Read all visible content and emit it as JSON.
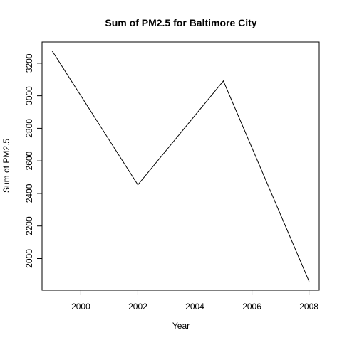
{
  "chart_data": {
    "type": "line",
    "title": "Sum of PM2.5 for Baltimore City",
    "xlabel": "Year",
    "ylabel": "Sum of PM2.5",
    "x": [
      1999,
      2002,
      2005,
      2008
    ],
    "series": [
      {
        "values": [
          3274,
          2453,
          3091,
          1862
        ]
      }
    ],
    "xlim": [
      1998.64,
      2008.36
    ],
    "ylim": [
      1805.5,
      3330.5
    ],
    "xticks": [
      2000,
      2002,
      2004,
      2006,
      2008
    ],
    "xtick_labels": [
      "2000",
      "2002",
      "2004",
      "2006",
      "2008"
    ],
    "yticks": [
      2000,
      2200,
      2400,
      2600,
      2800,
      3000,
      3200
    ],
    "ytick_labels": [
      "2000",
      "2200",
      "2400",
      "2600",
      "2800",
      "3000",
      "3200"
    ],
    "grid": false,
    "line_color": "#000000"
  }
}
